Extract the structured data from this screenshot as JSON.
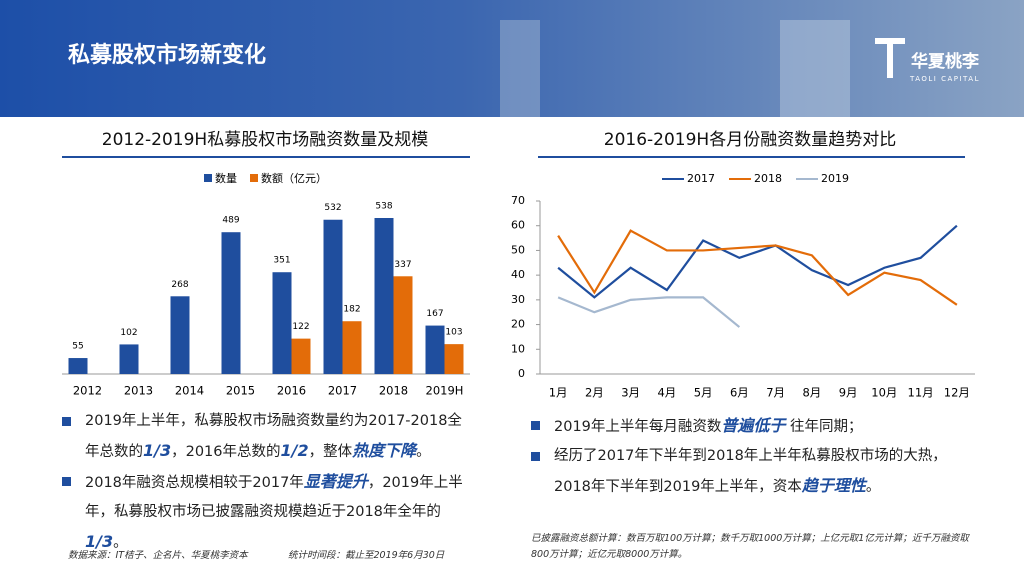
{
  "header": {
    "title": "私募股权市场新变化",
    "logo": "华夏桃李",
    "logo_sub": "TAOLI CAPITAL"
  },
  "chart_data": [
    {
      "type": "bar",
      "title": "2012-2019H私募股权市场融资数量及规模",
      "categories": [
        "2012",
        "2013",
        "2014",
        "2015",
        "2016",
        "2017",
        "2018",
        "2019H"
      ],
      "series": [
        {
          "name": "数量",
          "color": "#1f4e9e",
          "values": [
            55,
            102,
            268,
            489,
            351,
            532,
            538,
            167
          ]
        },
        {
          "name": "数额（亿元）",
          "color": "#e36c09",
          "values": [
            null,
            null,
            null,
            null,
            122,
            182,
            337,
            103
          ]
        }
      ]
    },
    {
      "type": "line",
      "title": "2016-2019H各月份融资数量趋势对比",
      "categories": [
        "1月",
        "2月",
        "3月",
        "4月",
        "5月",
        "6月",
        "7月",
        "8月",
        "9月",
        "10月",
        "11月",
        "12月"
      ],
      "ylim": [
        0,
        70
      ],
      "yticks": [
        0,
        10,
        20,
        30,
        40,
        50,
        60,
        70
      ],
      "series": [
        {
          "name": "2017",
          "color": "#1f4e9e",
          "values": [
            43,
            31,
            43,
            34,
            54,
            47,
            52,
            42,
            36,
            43,
            47,
            60
          ]
        },
        {
          "name": "2018",
          "color": "#e36c09",
          "values": [
            56,
            33,
            58,
            50,
            50,
            51,
            52,
            48,
            32,
            41,
            38,
            28
          ]
        },
        {
          "name": "2019",
          "color": "#a5b8cf",
          "values": [
            31,
            25,
            30,
            31,
            31,
            19,
            null,
            null,
            null,
            null,
            null,
            null
          ]
        }
      ]
    }
  ],
  "left_bullets": [
    [
      "2019年上半年，私募股权市场融资数量约为2017-2018全年总数的",
      "1/3",
      "，2016年总数的",
      "1/2",
      "，整体",
      "热度下降",
      "。"
    ],
    [
      "2018年融资总规模相较于2017年",
      "显著提升",
      "，2019年上半年，私募股权市场已披露融资规模趋近于2018年全年的",
      "1/3",
      "。"
    ]
  ],
  "right_bullets": [
    [
      "2019年上半年每月融资数",
      "普遍低于",
      " 往年同期；"
    ],
    [
      "经历了2017年下半年到2018年上半年私募股权市场的大热，2018年下半年到2019年上半年，资本",
      "趋于理性",
      "。"
    ]
  ],
  "footnotes": {
    "source": "数据来源：IT桔子、企名片、华夏桃李资本",
    "period": "统计时间段：截止至2019年6月30日",
    "method": "已披露融资总额计算：数百万取100万计算；数千万取1000万计算；上亿元取1亿元计算；近千万融资取800万计算；近亿元取8000万计算。"
  }
}
